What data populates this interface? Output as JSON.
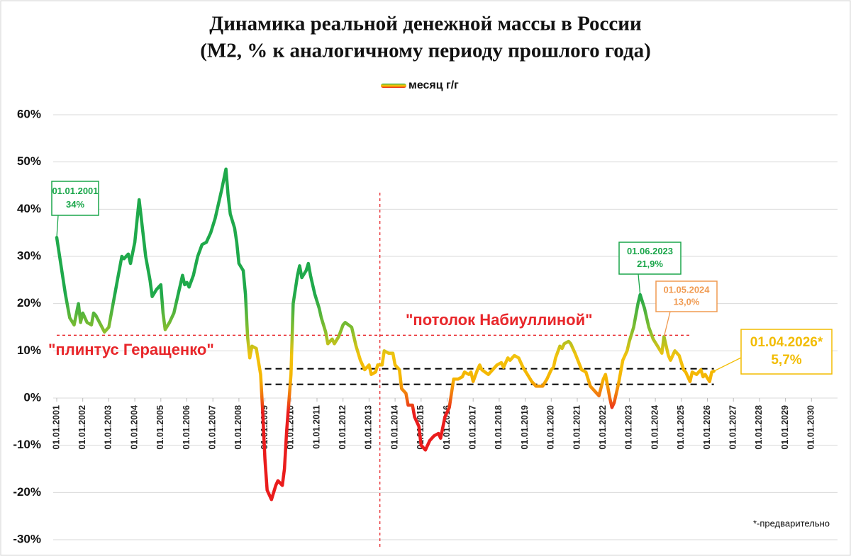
{
  "chart_data": {
    "type": "line",
    "title": "Динамика реальной денежной массы в России",
    "subtitle": "(М2, % к аналогичному периоду прошлого года)",
    "x": [
      "01.01.2001",
      "01.05.2001",
      "01.07.2001",
      "01.09.2001",
      "01.11.2001",
      "01.12.2001",
      "01.01.2002",
      "01.03.2002",
      "01.05.2002",
      "01.06.2002",
      "01.07.2002",
      "01.11.2002",
      "01.01.2003",
      "01.03.2003",
      "01.05.2003",
      "01.07.2003",
      "01.08.2003",
      "01.10.2003",
      "01.11.2003",
      "01.01.2004",
      "01.03.2004",
      "01.04.2004",
      "01.06.2004",
      "01.08.2004",
      "01.09.2004",
      "01.11.2004",
      "01.01.2005",
      "01.02.2005",
      "01.03.2005",
      "01.05.2005",
      "01.07.2005",
      "01.09.2005",
      "01.11.2005",
      "01.12.2005",
      "01.01.2006",
      "01.02.2006",
      "01.04.2006",
      "01.06.2006",
      "01.08.2006",
      "01.10.2006",
      "01.12.2006",
      "01.02.2007",
      "01.05.2007",
      "01.07.2007",
      "01.08.2007",
      "01.09.2007",
      "01.11.2007",
      "01.12.2007",
      "01.01.2008",
      "01.03.2008",
      "01.04.2008",
      "01.05.2008",
      "01.06.2008",
      "01.07.2008",
      "01.09.2008",
      "01.11.2008",
      "01.12.2008",
      "01.01.2009",
      "01.02.2009",
      "01.04.2009",
      "01.06.2009",
      "01.07.2009",
      "01.09.2009",
      "01.10.2009",
      "01.11.2009",
      "01.01.2010",
      "01.02.2010",
      "01.04.2010",
      "01.05.2010",
      "01.06.2010",
      "01.08.2010",
      "01.09.2010",
      "01.10.2010",
      "01.12.2010",
      "01.02.2011",
      "01.03.2011",
      "01.05.2011",
      "01.06.2011",
      "01.08.2011",
      "01.09.2011",
      "01.11.2011",
      "01.01.2012",
      "01.02.2012",
      "01.05.2012",
      "01.07.2012",
      "01.09.2012",
      "01.11.2012",
      "01.01.2013",
      "01.02.2013",
      "01.04.2013",
      "01.05.2013",
      "01.07.2013",
      "01.08.2013",
      "01.10.2013",
      "01.12.2013",
      "01.01.2014",
      "01.03.2014",
      "01.04.2014",
      "01.06.2014",
      "01.07.2014",
      "01.09.2014",
      "01.10.2014",
      "01.12.2014",
      "01.01.2015",
      "01.03.2015",
      "01.05.2015",
      "01.07.2015",
      "01.09.2015",
      "01.10.2015",
      "01.12.2015",
      "01.02.2016",
      "01.03.2016",
      "01.04.2016",
      "01.06.2016",
      "01.08.2016",
      "01.09.2016",
      "01.11.2016",
      "01.12.2016",
      "01.01.2017",
      "01.03.2017",
      "01.04.2017",
      "01.05.2017",
      "01.08.2017",
      "01.10.2017",
      "01.12.2017",
      "01.02.2018",
      "01.03.2018",
      "01.05.2018",
      "01.06.2018",
      "01.08.2018",
      "01.10.2018",
      "01.12.2018",
      "01.02.2019",
      "01.04.2019",
      "01.06.2019",
      "01.09.2019",
      "01.11.2019",
      "01.01.2020",
      "01.02.2020",
      "01.03.2020",
      "01.05.2020",
      "01.06.2020",
      "01.07.2020",
      "01.09.2020",
      "01.10.2020",
      "01.12.2020",
      "01.03.2021",
      "01.05.2021",
      "01.07.2021",
      "01.10.2021",
      "01.11.2021",
      "01.01.2022",
      "01.02.2022",
      "01.04.2022",
      "01.05.2022",
      "01.06.2022",
      "01.08.2022",
      "01.10.2022",
      "01.12.2022",
      "01.01.2023",
      "01.03.2023",
      "01.05.2023",
      "01.06.2023",
      "01.08.2023",
      "01.10.2023",
      "01.12.2023",
      "01.02.2024",
      "01.04.2024",
      "01.05.2024",
      "01.07.2024",
      "01.08.2024",
      "01.10.2024",
      "01.12.2024",
      "01.02.2025",
      "01.03.2025",
      "01.05.2025",
      "01.06.2025",
      "01.08.2025",
      "01.10.2025",
      "01.11.2025",
      "01.12.2025",
      "01.02.2026",
      "01.03.2026",
      "01.04.2026"
    ],
    "series": [
      {
        "name": "месяц г/г",
        "values": [
          34,
          22,
          17,
          15.5,
          20,
          16,
          18,
          16,
          15.5,
          18,
          17.5,
          14,
          15,
          20,
          25,
          30,
          29.5,
          30.5,
          28.5,
          33,
          42,
          38,
          30,
          25,
          21.5,
          23,
          24,
          18,
          14.5,
          16,
          18,
          22,
          26,
          24,
          24.5,
          23.5,
          26,
          30,
          32.5,
          33,
          35,
          38,
          44,
          48.5,
          43,
          39,
          36,
          33,
          28.5,
          27,
          22,
          13,
          8.5,
          11,
          10.5,
          5,
          -3,
          -13,
          -19.5,
          -21.5,
          -18.5,
          -17.5,
          -18.5,
          -15,
          -7,
          5,
          20,
          26,
          28,
          25.5,
          27,
          28.5,
          26,
          22,
          19,
          17,
          14,
          11.5,
          12.5,
          11.5,
          13,
          15.5,
          16,
          15,
          11,
          8,
          6,
          7,
          5,
          5.5,
          7,
          7,
          10,
          9.5,
          9.5,
          7,
          6,
          2,
          1,
          -1.5,
          -1.5,
          -4,
          -6,
          -10,
          -11,
          -9,
          -8,
          -7.5,
          -8.5,
          -4,
          -2,
          1,
          4,
          4,
          4.5,
          5.5,
          5,
          5.5,
          3.5,
          6,
          7,
          6,
          5,
          6,
          7,
          7.5,
          6.5,
          8.5,
          8,
          9,
          8.5,
          6.5,
          5,
          3.5,
          2.5,
          2.5,
          4,
          6,
          6.5,
          8.5,
          11,
          10.5,
          11.5,
          12,
          11.5,
          9.5,
          6,
          5.5,
          2.5,
          1,
          0.5,
          4,
          5,
          0,
          -2,
          -1,
          3,
          8,
          10,
          12,
          15,
          20,
          21.9,
          19,
          15,
          12.5,
          11,
          9.5,
          13,
          9,
          8,
          10,
          9,
          6,
          5.5,
          3.5,
          5.5,
          5,
          6,
          4.5,
          5,
          3.5,
          5.5,
          5.7
        ]
      }
    ],
    "color_stops": [
      {
        "value": 22,
        "color": "#1fa94b"
      },
      {
        "value": 14,
        "color": "#8bbf2c"
      },
      {
        "value": 9,
        "color": "#f2c30e"
      },
      {
        "value": 4,
        "color": "#f5b400"
      },
      {
        "value": 0,
        "color": "#f06a10"
      },
      {
        "value": -3,
        "color": "#ea1c1c"
      }
    ],
    "xlim": [
      "01.01.2001",
      "01.01.2031"
    ],
    "xticks": [
      "01.01.2001",
      "01.01.2002",
      "01.01.2003",
      "01.01.2004",
      "01.01.2005",
      "01.01.2006",
      "01.01.2007",
      "01.01.2008",
      "01.01.2009",
      "01.01.2010",
      "01.01.2011",
      "01.01.2012",
      "01.01.2013",
      "01.01.2014",
      "01.01.2015",
      "01.01.2016",
      "01.01.2017",
      "01.01.2018",
      "01.01.2019",
      "01.01.2020",
      "01.01.2021",
      "01.01.2022",
      "01.01.2023",
      "01.01.2024",
      "01.01.2025",
      "01.01.2026",
      "01.01.2027",
      "01.01.2028",
      "01.01.2029",
      "01.01.2030"
    ],
    "ylim": [
      -30,
      60
    ],
    "yticks": [
      {
        "value": -30,
        "label": "-30%"
      },
      {
        "value": -20,
        "label": "-20%"
      },
      {
        "value": -10,
        "label": "-10%"
      },
      {
        "value": 0,
        "label": "0%"
      },
      {
        "value": 10,
        "label": "10%"
      },
      {
        "value": 20,
        "label": "20%"
      },
      {
        "value": 30,
        "label": "30%"
      },
      {
        "value": 40,
        "label": "40%"
      },
      {
        "value": 50,
        "label": "50%"
      },
      {
        "value": 60,
        "label": "60%"
      }
    ],
    "grid": true,
    "reference_lines": [
      {
        "y": 13.3,
        "x": [
          "01.01.2001",
          "01.05.2025"
        ],
        "color": "#e8262a"
      },
      {
        "y": 6.2,
        "x": [
          "01.01.2009",
          "01.04.2026"
        ],
        "color": "#000000"
      },
      {
        "y": 2.9,
        "x": [
          "01.01.2009",
          "01.04.2026"
        ],
        "color": "#000000"
      },
      {
        "x": "01.06.2013",
        "y": [
          -32,
          43.5
        ],
        "color": "#e8262a"
      }
    ],
    "texts": [
      "\"плинтус Геращенко\"",
      "\"потолок Набиуллиной\"",
      "*-предварительно"
    ],
    "annotations": [
      {
        "x": "01.01.2001",
        "y": 34,
        "labels": [
          "01.01.2001",
          "34%"
        ],
        "color": "#1aa64a"
      },
      {
        "x": "01.06.2023",
        "y": 21.9,
        "labels": [
          "01.06.2023",
          "21,9%"
        ],
        "color": "#1aa64a"
      },
      {
        "x": "01.05.2024",
        "y": 13,
        "labels": [
          "01.05.2024",
          "13,0%"
        ],
        "color": "#f09a50"
      },
      {
        "x": "01.04.2026",
        "y": 5.7,
        "labels": [
          "01.04.2026*",
          "5,7%"
        ],
        "color": "#f2bc00"
      }
    ]
  }
}
